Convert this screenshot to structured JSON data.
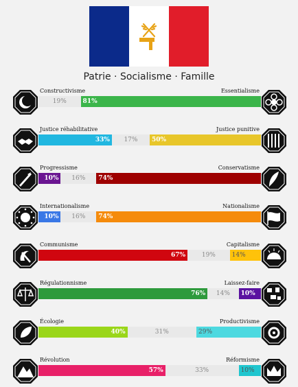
{
  "flag": {
    "colors": [
      "#0b2a8a",
      "#ffffff",
      "#e11d2a"
    ],
    "emblem": "hammer-and-wheat-icon",
    "emblem_color": "#e8a317"
  },
  "motto": "Patrie · Socialisme · Famille",
  "axes": [
    {
      "left_label": "Constructivisme",
      "right_label": "Essentialisme",
      "left_icon": "crescent-icon",
      "right_icon": "flower-icon",
      "left_pct": 0,
      "mid_pct": 19,
      "right_pct": 81,
      "left_text": "",
      "mid_text": "19%",
      "right_text": "81%",
      "left_color": "#1e88c7",
      "right_color": "#3bb54a"
    },
    {
      "left_label": "Justice réhabilitative",
      "right_label": "Justice punitive",
      "left_icon": "handshake-icon",
      "right_icon": "prison-bars-icon",
      "left_pct": 33,
      "mid_pct": 17,
      "right_pct": 50,
      "left_text": "33%",
      "mid_text": "17%",
      "right_text": "50%",
      "left_color": "#21b7e0",
      "right_color": "#e8c62a"
    },
    {
      "left_label": "Progressisme",
      "right_label": "Conservatisme",
      "left_icon": "rocket-icon",
      "right_icon": "quill-icon",
      "left_pct": 10,
      "mid_pct": 16,
      "right_pct": 74,
      "left_text": "10%",
      "mid_text": "16%",
      "right_text": "74%",
      "left_color": "#6a1591",
      "right_color": "#9e0000"
    },
    {
      "left_label": "Internationalisme",
      "right_label": "Nationalisme",
      "left_icon": "globe-stars-icon",
      "right_icon": "waving-flag-icon",
      "left_pct": 10,
      "mid_pct": 16,
      "right_pct": 74,
      "left_text": "10%",
      "mid_text": "16%",
      "right_text": "74%",
      "left_color": "#3a78e6",
      "right_color": "#f58b0c"
    },
    {
      "left_label": "Communisme",
      "right_label": "Capitalisme",
      "left_icon": "hammer-sickle-icon",
      "right_icon": "coins-icon",
      "left_pct": 67,
      "mid_pct": 19,
      "right_pct": 14,
      "left_text": "67%",
      "mid_text": "19%",
      "right_text": "14%",
      "left_color": "#d0060f",
      "right_color": "#ffc20a"
    },
    {
      "left_label": "Régulationnisme",
      "right_label": "Laissez-faire",
      "left_icon": "scales-icon",
      "right_icon": "scattered-pieces-icon",
      "left_pct": 76,
      "mid_pct": 14,
      "right_pct": 10,
      "left_text": "76%",
      "mid_text": "14%",
      "right_text": "10%",
      "left_color": "#2e9a3c",
      "right_color": "#5a12a0"
    },
    {
      "left_label": "Écologie",
      "right_label": "Productivisme",
      "left_icon": "leaf-hand-icon",
      "right_icon": "factory-gear-icon",
      "left_pct": 40,
      "mid_pct": 31,
      "right_pct": 29,
      "left_text": "40%",
      "mid_text": "31%",
      "right_text": "29%",
      "left_color": "#9ad61a",
      "right_color": "#4dd9e0"
    },
    {
      "left_label": "Révolution",
      "right_label": "Réformisme",
      "left_icon": "mountain-fist-icon",
      "right_icon": "crown-icon",
      "left_pct": 57,
      "mid_pct": 33,
      "right_pct": 10,
      "left_text": "57%",
      "mid_text": "33%",
      "right_text": "10%",
      "left_color": "#e82068",
      "right_color": "#1fc6cf"
    }
  ]
}
